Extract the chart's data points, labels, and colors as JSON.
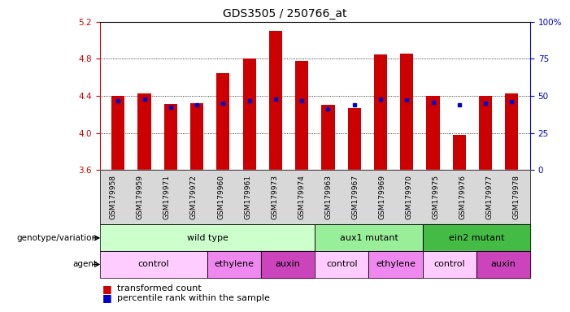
{
  "title": "GDS3505 / 250766_at",
  "samples": [
    "GSM179958",
    "GSM179959",
    "GSM179971",
    "GSM179972",
    "GSM179960",
    "GSM179961",
    "GSM179973",
    "GSM179974",
    "GSM179963",
    "GSM179967",
    "GSM179969",
    "GSM179970",
    "GSM179975",
    "GSM179976",
    "GSM179977",
    "GSM179978"
  ],
  "bar_values": [
    4.4,
    4.43,
    4.31,
    4.32,
    4.65,
    4.8,
    5.1,
    4.78,
    4.3,
    4.27,
    4.85,
    4.86,
    4.4,
    3.98,
    4.4,
    4.43
  ],
  "blue_dot_values": [
    4.35,
    4.37,
    4.28,
    4.3,
    4.32,
    4.35,
    4.37,
    4.35,
    4.26,
    4.3,
    4.37,
    4.36,
    4.33,
    4.3,
    4.32,
    4.34
  ],
  "ylim": [
    3.6,
    5.2
  ],
  "yticks": [
    3.6,
    4.0,
    4.4,
    4.8,
    5.2
  ],
  "ytick_labels_left": [
    "3.6",
    "4.0",
    "4.4",
    "4.8",
    "5.2"
  ],
  "right_yticks": [
    0,
    25,
    50,
    75,
    100
  ],
  "right_ytick_labels": [
    "0",
    "25",
    "50",
    "75",
    "100%"
  ],
  "bar_color": "#cc0000",
  "dot_color": "#0000cc",
  "bar_bottom": 3.6,
  "genotype_groups": [
    {
      "label": "wild type",
      "start": 0,
      "end": 8,
      "color": "#ccffcc"
    },
    {
      "label": "aux1 mutant",
      "start": 8,
      "end": 12,
      "color": "#99ee99"
    },
    {
      "label": "ein2 mutant",
      "start": 12,
      "end": 16,
      "color": "#44bb44"
    }
  ],
  "agent_groups": [
    {
      "label": "control",
      "start": 0,
      "end": 4,
      "color": "#ffccff"
    },
    {
      "label": "ethylene",
      "start": 4,
      "end": 6,
      "color": "#ee88ee"
    },
    {
      "label": "auxin",
      "start": 6,
      "end": 8,
      "color": "#dd44cc"
    },
    {
      "label": "control",
      "start": 8,
      "end": 10,
      "color": "#ffccff"
    },
    {
      "label": "ethylene",
      "start": 10,
      "end": 12,
      "color": "#ee88ee"
    },
    {
      "label": "control",
      "start": 12,
      "end": 14,
      "color": "#ffccff"
    },
    {
      "label": "auxin",
      "start": 14,
      "end": 16,
      "color": "#dd44cc"
    }
  ],
  "background_color": "white",
  "title_fontsize": 10,
  "tick_fontsize": 7.5,
  "sample_fontsize": 6.5,
  "annot_fontsize": 8,
  "legend_fontsize": 8
}
